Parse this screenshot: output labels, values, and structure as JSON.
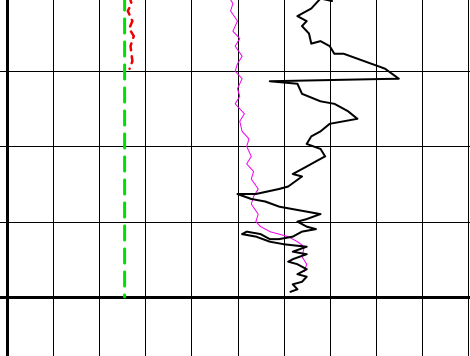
{
  "chart_data": {
    "type": "line",
    "title": "",
    "xlabel": "",
    "ylabel": "",
    "grid": true,
    "legend": "none",
    "xlim": [
      0,
      10
    ],
    "ylim": [
      0,
      7.5
    ],
    "y_direction": "down",
    "vertical_grid": [
      0,
      1,
      2,
      3,
      4,
      5,
      6,
      7,
      8,
      9,
      10
    ],
    "horizontal_grid": [
      0,
      1.5,
      3,
      4.5,
      6,
      7.5
    ],
    "bold_vertical_grid": [
      0
    ],
    "bold_horizontal_grid": [
      6
    ],
    "series": [
      {
        "color": "#00e000",
        "dash": "dashed",
        "width": 3,
        "points": [
          [
            2.55,
            0.0
          ],
          [
            2.55,
            6.0
          ]
        ]
      },
      {
        "color": "#ee0000",
        "dash": "dashed",
        "width": 2.5,
        "points": [
          [
            2.65,
            0.0
          ],
          [
            2.7,
            0.15
          ],
          [
            2.62,
            0.3
          ],
          [
            2.72,
            0.5
          ],
          [
            2.65,
            0.65
          ],
          [
            2.75,
            0.8
          ],
          [
            2.68,
            1.0
          ],
          [
            2.72,
            1.3
          ],
          [
            2.66,
            1.45
          ]
        ]
      },
      {
        "color": "#ee00ee",
        "dash": "solid",
        "width": 1,
        "points": [
          [
            4.8,
            0.0
          ],
          [
            4.9,
            0.15
          ],
          [
            4.85,
            0.3
          ],
          [
            5.0,
            0.5
          ],
          [
            4.9,
            0.7
          ],
          [
            5.05,
            0.85
          ],
          [
            4.95,
            1.0
          ],
          [
            5.1,
            1.2
          ],
          [
            5.0,
            1.35
          ],
          [
            4.95,
            1.5
          ],
          [
            5.1,
            1.65
          ],
          [
            5.0,
            1.85
          ],
          [
            5.05,
            2.0
          ],
          [
            4.95,
            2.15
          ],
          [
            5.15,
            2.35
          ],
          [
            5.05,
            2.5
          ],
          [
            5.1,
            2.7
          ],
          [
            5.25,
            2.85
          ],
          [
            5.2,
            3.0
          ],
          [
            5.3,
            3.2
          ],
          [
            5.2,
            3.35
          ],
          [
            5.35,
            3.5
          ],
          [
            5.3,
            3.65
          ],
          [
            5.45,
            3.85
          ],
          [
            5.35,
            4.0
          ],
          [
            5.3,
            4.15
          ],
          [
            5.45,
            4.35
          ],
          [
            5.4,
            4.5
          ],
          [
            5.5,
            4.6
          ],
          [
            5.7,
            4.7
          ],
          [
            5.9,
            4.75
          ],
          [
            6.1,
            4.8
          ],
          [
            6.3,
            4.9
          ],
          [
            6.45,
            5.0
          ],
          [
            6.4,
            5.2
          ],
          [
            6.5,
            5.35
          ],
          [
            6.45,
            5.5
          ]
        ]
      },
      {
        "color": "#000000",
        "dash": "solid",
        "width": 2,
        "points": [
          [
            7.05,
            0.1
          ],
          [
            6.8,
            0.05
          ],
          [
            6.6,
            0.25
          ],
          [
            6.3,
            0.4
          ],
          [
            6.5,
            0.5
          ],
          [
            6.4,
            0.6
          ],
          [
            6.55,
            0.75
          ],
          [
            6.6,
            0.95
          ],
          [
            6.8,
            0.9
          ],
          [
            7.0,
            1.0
          ],
          [
            7.1,
            1.15
          ],
          [
            7.3,
            1.15
          ],
          [
            7.6,
            1.25
          ],
          [
            7.9,
            1.35
          ],
          [
            8.2,
            1.45
          ],
          [
            8.5,
            1.65
          ],
          [
            5.7,
            1.7
          ],
          [
            6.3,
            1.75
          ],
          [
            6.4,
            1.95
          ],
          [
            6.8,
            2.1
          ],
          [
            7.1,
            2.15
          ],
          [
            7.4,
            2.3
          ],
          [
            7.6,
            2.45
          ],
          [
            7.3,
            2.5
          ],
          [
            7.0,
            2.55
          ],
          [
            6.8,
            2.7
          ],
          [
            6.6,
            2.8
          ],
          [
            6.5,
            2.95
          ],
          [
            6.8,
            3.05
          ],
          [
            6.9,
            3.2
          ],
          [
            6.7,
            3.3
          ],
          [
            6.5,
            3.4
          ],
          [
            6.2,
            3.55
          ],
          [
            6.4,
            3.6
          ],
          [
            6.1,
            3.8
          ],
          [
            5.9,
            3.85
          ],
          [
            5.4,
            3.95
          ],
          [
            5.0,
            3.95
          ],
          [
            5.3,
            4.05
          ],
          [
            5.6,
            4.1
          ],
          [
            5.9,
            4.2
          ],
          [
            6.2,
            4.25
          ],
          [
            6.5,
            4.3
          ],
          [
            6.8,
            4.35
          ],
          [
            6.5,
            4.45
          ],
          [
            6.3,
            4.5
          ],
          [
            6.5,
            4.6
          ],
          [
            6.7,
            4.65
          ],
          [
            6.4,
            4.7
          ],
          [
            6.2,
            4.8
          ],
          [
            5.9,
            4.85
          ],
          [
            5.7,
            4.85
          ],
          [
            5.5,
            4.75
          ],
          [
            5.2,
            4.7
          ],
          [
            5.1,
            4.75
          ],
          [
            5.4,
            4.8
          ],
          [
            5.7,
            4.9
          ],
          [
            6.0,
            4.95
          ],
          [
            6.5,
            5.0
          ],
          [
            6.2,
            5.1
          ],
          [
            6.5,
            5.15
          ],
          [
            6.2,
            5.25
          ],
          [
            6.1,
            5.3
          ],
          [
            6.3,
            5.35
          ],
          [
            6.5,
            5.45
          ],
          [
            6.3,
            5.55
          ],
          [
            6.5,
            5.6
          ],
          [
            6.4,
            5.7
          ],
          [
            6.2,
            5.75
          ],
          [
            6.3,
            5.85
          ],
          [
            6.15,
            5.9
          ]
        ]
      }
    ]
  }
}
